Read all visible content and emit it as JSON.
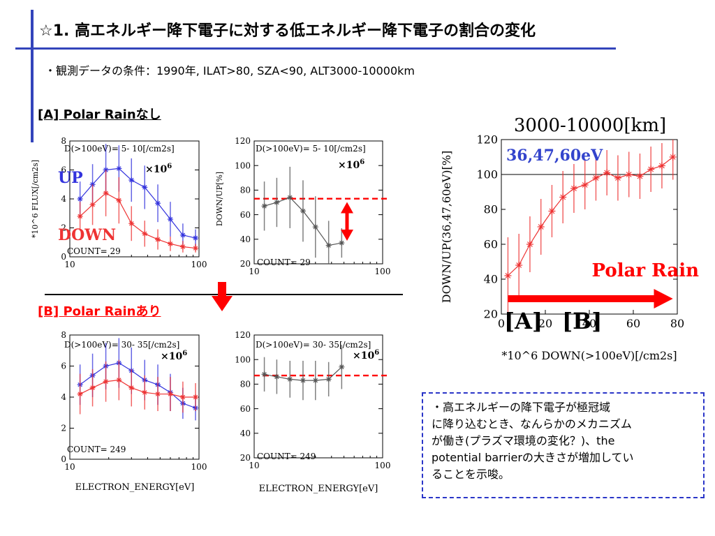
{
  "header": {
    "title": "☆1. 高エネルギー降下電子に対する低エネルギー降下電子の割合の変化",
    "subtitle": "・観測データの条件：1990年, ILAT>80, SZA<90, ALT3000-10000km"
  },
  "sections": {
    "a_label": "[A] Polar Rainなし",
    "b_label": "[B] Polar Rainあり"
  },
  "note": {
    "lines": [
      "・高エネルギーの降下電子が極冠域",
      "に降り込むとき、なんらかのメカニズム",
      "が働き(プラズマ環境の変化？)、the",
      "potential barrierの大きさが増加してい",
      "ることを示唆。"
    ]
  },
  "colors": {
    "accent": "#3344bb",
    "up": "#3333dd",
    "down": "#ee3333",
    "ratio": "#555555",
    "highlight": "#ff0000"
  },
  "chart_data": [
    {
      "id": "A-flux",
      "type": "line",
      "ylabel": "*10^6 FLUX[/cm2s]",
      "xlabel": "",
      "xscale": "log",
      "xlim": [
        10,
        100
      ],
      "ylim": [
        0,
        8
      ],
      "xticks": [
        10,
        100
      ],
      "yticks": [
        0,
        2,
        4,
        6,
        8
      ],
      "header": "D(>100eV)= 5- 10[/cm2s]",
      "mult": "×10",
      "mult_exp": "6",
      "count": "COUNT= 29",
      "up_label": "UP",
      "down_label": "DOWN",
      "series": [
        {
          "color": "#3333dd",
          "x": [
            12,
            15,
            19,
            24,
            30,
            38,
            48,
            60,
            75,
            94
          ],
          "y": [
            4.0,
            5.0,
            6.0,
            6.1,
            5.3,
            4.8,
            3.7,
            2.6,
            1.5,
            1.3
          ],
          "err": [
            1.2,
            1.4,
            1.8,
            1.6,
            1.5,
            1.5,
            1.3,
            1.2,
            0.8,
            0.6
          ]
        },
        {
          "color": "#ee3333",
          "x": [
            12,
            15,
            19,
            24,
            30,
            38,
            48,
            60,
            75,
            94
          ],
          "y": [
            2.8,
            3.6,
            4.4,
            3.9,
            2.3,
            1.6,
            1.2,
            0.9,
            0.7,
            0.6
          ],
          "err": [
            1.0,
            1.4,
            1.6,
            1.6,
            1.2,
            0.9,
            0.7,
            0.5,
            0.4,
            0.3
          ]
        }
      ]
    },
    {
      "id": "A-ratio",
      "type": "line",
      "ylabel": "DOWN/UP[%]",
      "xlabel": "",
      "xscale": "log",
      "xlim": [
        10,
        100
      ],
      "ylim": [
        20,
        120
      ],
      "xticks": [
        10,
        100
      ],
      "yticks": [
        20,
        40,
        60,
        80,
        100,
        120
      ],
      "header": "D(>100eV)= 5- 10[/cm2s]",
      "mult": "×10",
      "mult_exp": "6",
      "count": "COUNT= 29",
      "dashed_y": 73,
      "series": [
        {
          "color": "#555555",
          "x": [
            12,
            15,
            19,
            24,
            30,
            38,
            48
          ],
          "y": [
            67,
            70,
            74,
            63,
            50,
            35,
            37
          ],
          "err": [
            20,
            20,
            25,
            25,
            25,
            20,
            12
          ]
        }
      ]
    },
    {
      "id": "B-flux",
      "type": "line",
      "ylabel": "",
      "xlabel": "ELECTRON_ENERGY[eV]",
      "xscale": "log",
      "xlim": [
        10,
        100
      ],
      "ylim": [
        0,
        8
      ],
      "xticks": [
        10,
        100
      ],
      "yticks": [
        0,
        2,
        4,
        6,
        8
      ],
      "header": "D(>100eV)= 30- 35[/cm2s]",
      "mult": "×10",
      "mult_exp": "6",
      "count": "COUNT= 249",
      "series": [
        {
          "color": "#3333dd",
          "x": [
            12,
            15,
            19,
            24,
            30,
            38,
            48,
            60,
            75,
            94
          ],
          "y": [
            4.8,
            5.4,
            6.0,
            6.2,
            5.7,
            5.1,
            4.8,
            4.3,
            3.6,
            3.3
          ],
          "err": [
            1.3,
            1.4,
            1.5,
            1.6,
            1.5,
            1.3,
            1.3,
            1.2,
            1.0,
            0.8
          ]
        },
        {
          "color": "#ee3333",
          "x": [
            12,
            15,
            19,
            24,
            30,
            38,
            48,
            60,
            75,
            94
          ],
          "y": [
            4.2,
            4.6,
            5.0,
            5.1,
            4.6,
            4.3,
            4.2,
            4.2,
            4.0,
            4.0
          ],
          "err": [
            1.3,
            1.2,
            1.3,
            1.3,
            1.2,
            1.1,
            1.1,
            1.1,
            1.0,
            0.9
          ]
        }
      ]
    },
    {
      "id": "B-ratio",
      "type": "line",
      "ylabel": "",
      "xlabel": "ELECTRON_ENERGY[eV]",
      "xscale": "log",
      "xlim": [
        10,
        100
      ],
      "ylim": [
        20,
        120
      ],
      "xticks": [
        10,
        100
      ],
      "yticks": [
        20,
        40,
        60,
        80,
        100,
        120
      ],
      "header": "D(>100eV)= 30- 35[/cm2s]",
      "mult": "×10",
      "mult_exp": "6",
      "count": "COUNT= 249",
      "dashed_y": 87,
      "series": [
        {
          "color": "#555555",
          "x": [
            12,
            15,
            19,
            24,
            30,
            38,
            48
          ],
          "y": [
            88,
            86,
            84,
            83,
            83,
            84,
            94
          ],
          "err": [
            14,
            14,
            15,
            16,
            16,
            14,
            18
          ]
        }
      ]
    },
    {
      "id": "summary",
      "type": "line",
      "title": "3000-10000[km]",
      "ylabel": "DOWN/UP(36,47,60eV)[%]",
      "xlabel": "*10^6 DOWN(>100eV)[/cm2s]",
      "xscale": "linear",
      "xlim": [
        0,
        80
      ],
      "ylim": [
        20,
        120
      ],
      "xticks": [
        0,
        20,
        40,
        60,
        80
      ],
      "yticks": [
        20,
        40,
        60,
        80,
        100,
        120
      ],
      "hline": 100,
      "energy_label": "36,47,60eV",
      "polar_rain_label": "Polar Rain",
      "label_a": "[A]",
      "label_b": "[B]",
      "series": [
        {
          "color": "#ee3333",
          "x": [
            3,
            8,
            13,
            18,
            23,
            28,
            33,
            38,
            43,
            48,
            53,
            58,
            63,
            68,
            73,
            78
          ],
          "y": [
            42,
            48,
            60,
            70,
            79,
            87,
            92,
            94,
            98,
            101,
            98,
            100,
            99,
            103,
            105,
            110
          ],
          "err": [
            22,
            18,
            16,
            16,
            15,
            15,
            14,
            14,
            13,
            13,
            13,
            13,
            13,
            13,
            13,
            13
          ]
        }
      ]
    }
  ]
}
